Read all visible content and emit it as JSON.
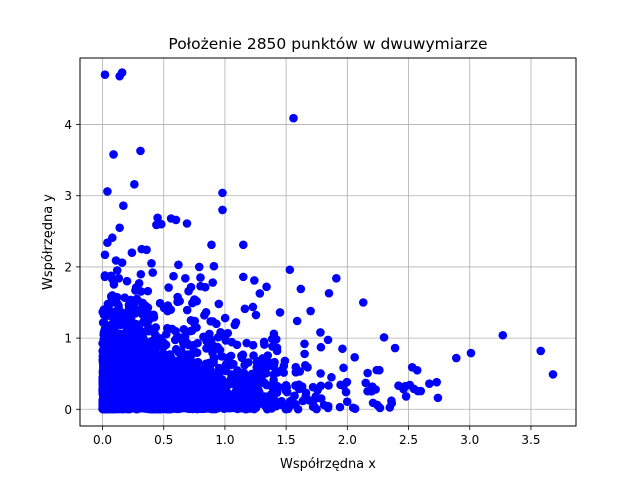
{
  "chart_data": {
    "type": "scatter",
    "title": "Położenie 2850 punktów w dwuwymiarze",
    "xlabel": "Współrzędna x",
    "ylabel": "Współrzędna y",
    "xlim": [
      -0.184,
      3.868
    ],
    "ylim": [
      -0.235,
      4.935
    ],
    "xticks": [
      0.0,
      0.5,
      1.0,
      1.5,
      2.0,
      2.5,
      3.0,
      3.5
    ],
    "xtick_labels": [
      "0.0",
      "0.5",
      "1.0",
      "1.5",
      "2.0",
      "2.5",
      "3.0",
      "3.5"
    ],
    "yticks": [
      0,
      1,
      2,
      3,
      4
    ],
    "ytick_labels": [
      "0",
      "1",
      "2",
      "3",
      "4"
    ],
    "grid": true,
    "point_count": 2850,
    "colors": {
      "points": "#0000ff",
      "axes": "#000000",
      "grid": "#b0b0b0",
      "background": "#ffffff"
    },
    "points": [
      [
        0.02,
        4.7
      ],
      [
        0.14,
        4.68
      ],
      [
        0.16,
        4.73
      ],
      [
        1.56,
        4.09
      ],
      [
        0.09,
        3.58
      ],
      [
        0.31,
        3.63
      ],
      [
        0.04,
        3.06
      ],
      [
        0.26,
        3.16
      ],
      [
        0.17,
        2.86
      ],
      [
        0.98,
        3.04
      ],
      [
        0.98,
        2.8
      ],
      [
        0.45,
        2.69
      ],
      [
        0.56,
        2.68
      ],
      [
        0.69,
        2.61
      ],
      [
        0.44,
        2.59
      ],
      [
        0.48,
        2.6
      ],
      [
        0.6,
        2.66
      ],
      [
        0.04,
        2.34
      ],
      [
        0.08,
        2.41
      ],
      [
        0.14,
        2.55
      ],
      [
        0.89,
        2.31
      ],
      [
        1.15,
        2.31
      ],
      [
        0.02,
        2.17
      ],
      [
        0.24,
        2.2
      ],
      [
        0.32,
        2.25
      ],
      [
        0.36,
        2.24
      ],
      [
        0.11,
        2.09
      ],
      [
        0.16,
        2.06
      ],
      [
        0.4,
        2.05
      ],
      [
        0.62,
        2.03
      ],
      [
        0.79,
        2.0
      ],
      [
        0.91,
        2.01
      ],
      [
        1.53,
        1.96
      ],
      [
        0.02,
        1.88
      ],
      [
        0.12,
        1.95
      ],
      [
        0.41,
        1.92
      ],
      [
        0.58,
        1.87
      ],
      [
        0.8,
        1.85
      ],
      [
        1.15,
        1.86
      ],
      [
        1.24,
        1.81
      ],
      [
        1.91,
        1.84
      ],
      [
        1.34,
        1.72
      ],
      [
        1.62,
        1.69
      ],
      [
        1.85,
        1.63
      ],
      [
        2.13,
        1.5
      ],
      [
        1.7,
        1.38
      ],
      [
        1.59,
        1.24
      ],
      [
        1.78,
        1.08
      ],
      [
        2.3,
        1.01
      ],
      [
        3.27,
        1.04
      ],
      [
        3.58,
        0.82
      ],
      [
        3.68,
        0.49
      ],
      [
        2.89,
        0.72
      ],
      [
        3.01,
        0.79
      ],
      [
        2.39,
        0.86
      ],
      [
        1.96,
        0.85
      ],
      [
        2.53,
        0.59
      ],
      [
        2.73,
        0.38
      ],
      [
        2.67,
        0.36
      ],
      [
        2.74,
        0.16
      ],
      [
        2.51,
        0.34
      ],
      [
        2.48,
        0.18
      ],
      [
        2.36,
        0.12
      ],
      [
        2.21,
        0.09
      ],
      [
        2.06,
        0.73
      ],
      [
        2.24,
        0.55
      ],
      [
        2.15,
        0.37
      ],
      [
        1.87,
        0.45
      ],
      [
        1.72,
        0.31
      ],
      [
        1.66,
        0.18
      ],
      [
        1.81,
        0.06
      ],
      [
        1.94,
        0.03
      ],
      [
        1.65,
        0.92
      ],
      [
        1.45,
        1.36
      ],
      [
        1.4,
        1.06
      ],
      [
        1.49,
        0.68
      ],
      [
        1.32,
        0.52
      ],
      [
        1.27,
        0.38
      ],
      [
        1.23,
        0.9
      ],
      [
        1.09,
        1.22
      ],
      [
        1.05,
        0.75
      ],
      [
        0.95,
        1.48
      ],
      [
        0.93,
        1.2
      ],
      [
        0.75,
        1.54
      ],
      [
        0.63,
        1.52
      ],
      [
        0.54,
        1.71
      ],
      [
        0.47,
        1.49
      ],
      [
        0.37,
        1.66
      ],
      [
        0.28,
        1.55
      ],
      [
        0.2,
        1.8
      ],
      [
        0.19,
        1.35
      ],
      [
        0.08,
        1.6
      ],
      [
        0.03,
        1.31
      ],
      [
        0.05,
        1.1
      ],
      [
        0.01,
        0.98
      ],
      [
        0.02,
        0.86
      ]
    ]
  }
}
